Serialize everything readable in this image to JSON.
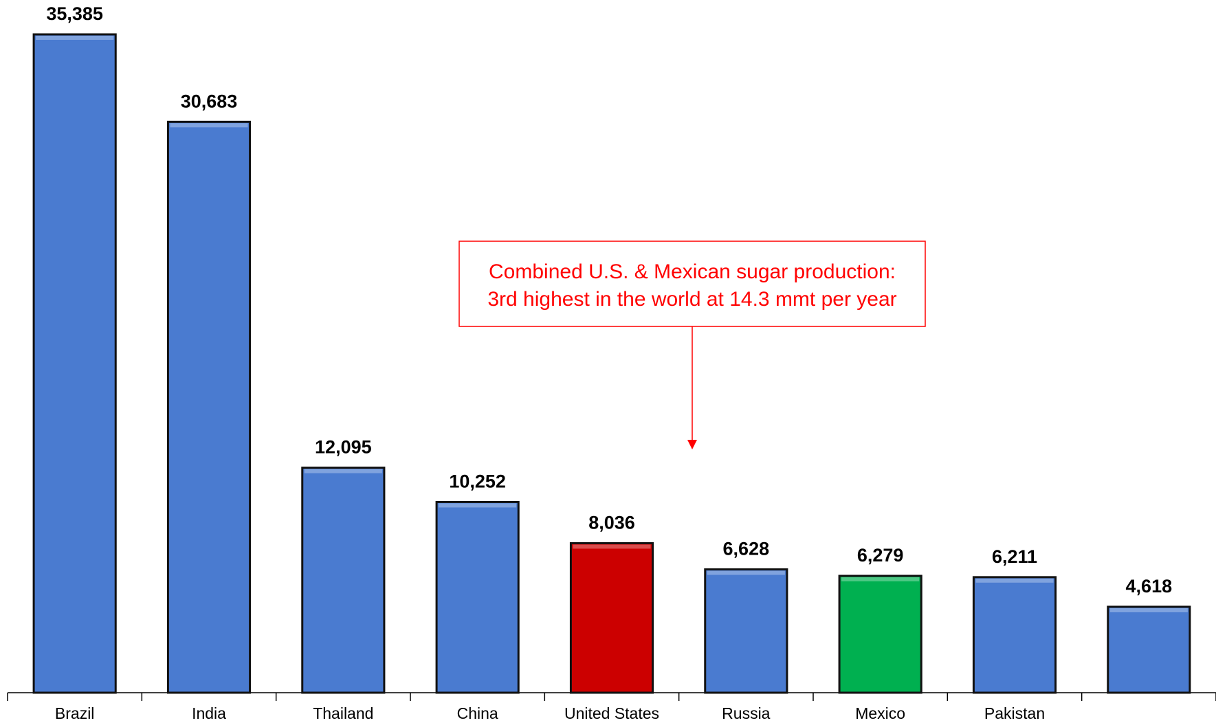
{
  "chart_data": {
    "type": "bar",
    "categories": [
      "Brazil",
      "India",
      "Thailand",
      "China",
      "United States",
      "Russia",
      "Mexico",
      "Pakistan",
      null
    ],
    "values": [
      35385,
      30683,
      12095,
      10252,
      8036,
      6628,
      6279,
      6211,
      4618
    ],
    "value_labels": [
      "35,385",
      "30,683",
      "12,095",
      "10,252",
      "8,036",
      "6,628",
      "6,279",
      "6,211",
      "4,618"
    ],
    "colors": [
      "#4a7bd0",
      "#4a7bd0",
      "#4a7bd0",
      "#4a7bd0",
      "#cc0000",
      "#4a7bd0",
      "#00b050",
      "#4a7bd0",
      "#4a7bd0"
    ],
    "annotation": [
      "Combined U.S. & Mexican sugar production:",
      "3rd highest in the world at 14.3 mmt per year"
    ]
  }
}
